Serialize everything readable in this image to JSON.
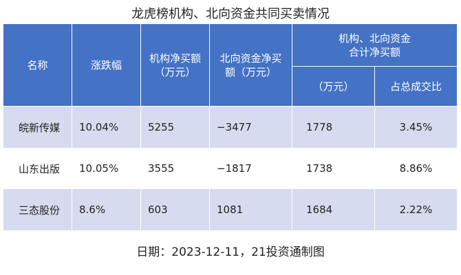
{
  "title": "龙虎榜机构、北向资金共同买卖情况",
  "header": {
    "name": "名称",
    "change": "涨跌幅",
    "inst": [
      "机构净买额",
      "（万元）"
    ],
    "north": [
      "北向资金净买",
      "额（万元）"
    ],
    "combined": [
      "机构、北向资金",
      "合计净买额"
    ],
    "combined_unit": "（万元）",
    "ratio": "占总成交比"
  },
  "table": {
    "rows": [
      [
        "皖新传媒",
        "10.04%",
        "5255",
        "−3477",
        "1778",
        "3.45%"
      ],
      [
        "山东出版",
        "10.05%",
        "3555",
        "−1817",
        "1738",
        "8.86%"
      ],
      [
        "三态股份",
        "8.6%",
        "603",
        "1081",
        "1684",
        "2.22%"
      ]
    ]
  },
  "footer": "日期：2023-12-11，21投资通制图"
}
